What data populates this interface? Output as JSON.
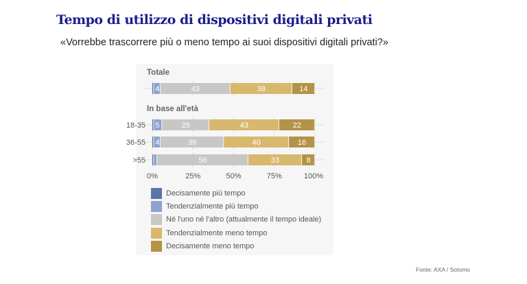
{
  "title": "Tempo di utilizzo di dispositivi digitali privati",
  "subtitle": "«Vorrebbe trascorrere più o meno tempo ai suoi dispositivi digitali privati?»",
  "source": "Fonte: AXA / Sotomo",
  "chart_data": {
    "type": "bar",
    "orientation": "horizontal-stacked-100",
    "groups": [
      {
        "label": "Totale",
        "categories": [
          "Totale"
        ]
      },
      {
        "label": "In base all'età",
        "categories": [
          "18-35",
          "36-55",
          ">55"
        ]
      }
    ],
    "categories": [
      "Totale",
      "18-35",
      "36-55",
      ">55"
    ],
    "category_labels_shown": [
      "",
      "18-35",
      "36-55",
      ">55"
    ],
    "series": [
      {
        "name": "Decisamente più tempo",
        "color": "#5a76a8",
        "values": [
          1,
          1,
          1,
          1
        ]
      },
      {
        "name": "Tendenzialmente più tempo",
        "color": "#8ea2cf",
        "values": [
          4,
          5,
          4,
          2
        ]
      },
      {
        "name": "Né l'uno né l'altro (attualmente il tempo ideale)",
        "color": "#c9c7c5",
        "values": [
          43,
          29,
          39,
          56
        ]
      },
      {
        "name": "Tendenzialmente meno tempo",
        "color": "#d8b86d",
        "values": [
          38,
          43,
          40,
          33
        ]
      },
      {
        "name": "Decisamente meno tempo",
        "color": "#b39347",
        "values": [
          14,
          22,
          16,
          8
        ]
      }
    ],
    "xlim": [
      0,
      100
    ],
    "xticks": [
      "0%",
      "25%",
      "50%",
      "75%",
      "100%"
    ],
    "grid": true,
    "legend_position": "bottom"
  }
}
